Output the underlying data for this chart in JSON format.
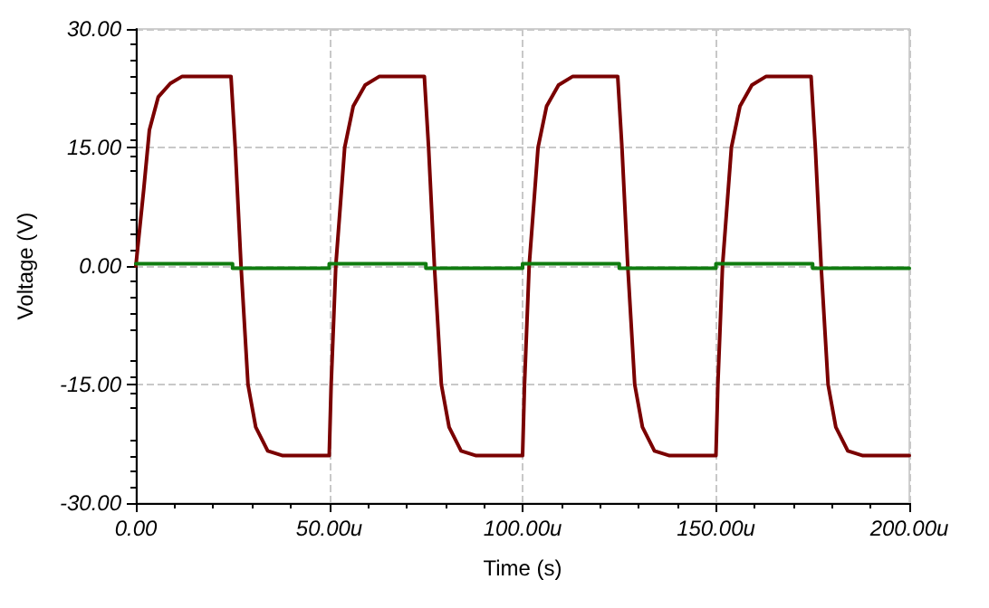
{
  "chart_data": {
    "type": "line",
    "xlabel": "Time (s)",
    "ylabel": "Voltage (V)",
    "xlim": [
      0,
      200
    ],
    "ylim": [
      -30,
      30
    ],
    "xticks": [
      {
        "value": 0,
        "label": "0.00"
      },
      {
        "value": 50,
        "label": "50.00u"
      },
      {
        "value": 100,
        "label": "100.00u"
      },
      {
        "value": 150,
        "label": "150.00u"
      },
      {
        "value": 200,
        "label": "200.00u"
      }
    ],
    "yticks": [
      {
        "value": -30,
        "label": "-30.00"
      },
      {
        "value": -15,
        "label": "-15.00"
      },
      {
        "value": 0,
        "label": "0.00"
      },
      {
        "value": 15,
        "label": "15.00"
      },
      {
        "value": 30,
        "label": "30.00"
      }
    ],
    "grid": true,
    "marker": "none",
    "line_style": "solid",
    "series": [
      {
        "color": "#7a0000",
        "x": [
          0,
          2,
          3.5,
          5.8,
          8.9,
          12,
          24.6,
          25.7,
          27.2,
          29,
          31,
          34.1,
          38,
          50,
          50.5,
          51.7,
          54,
          56.2,
          59.3,
          63,
          74.6,
          75.7,
          77.2,
          79,
          81,
          84.1,
          88,
          100,
          100.5,
          101.7,
          104,
          106.2,
          109.3,
          113,
          124.6,
          125.7,
          127.2,
          129,
          131,
          134.1,
          138,
          150,
          150.5,
          151.7,
          154,
          156.2,
          159.3,
          163,
          174.6,
          175.7,
          177.2,
          179,
          181,
          184.1,
          188,
          200
        ],
        "values": [
          0,
          9.5,
          17.2,
          21.4,
          23.1,
          24,
          24,
          15,
          0,
          -15,
          -20.4,
          -23.4,
          -24,
          -24,
          -15,
          0,
          15,
          20.2,
          22.9,
          24,
          24,
          15,
          0,
          -15,
          -20.4,
          -23.4,
          -24,
          -24,
          -15,
          0,
          15,
          20.2,
          22.9,
          24,
          24,
          15,
          0,
          -15,
          -20.4,
          -23.4,
          -24,
          -24,
          -15,
          0,
          15,
          20.2,
          22.9,
          24,
          24,
          15,
          0,
          -15,
          -20.4,
          -23.4,
          -24,
          -24
        ]
      },
      {
        "color": "#107c10",
        "x": [
          0,
          25,
          25,
          50,
          50,
          75,
          75,
          100,
          100,
          125,
          125,
          150,
          150,
          175,
          175,
          200
        ],
        "values": [
          0.3,
          0.3,
          -0.3,
          -0.3,
          0.3,
          0.3,
          -0.3,
          -0.3,
          0.3,
          0.3,
          -0.3,
          -0.3,
          0.3,
          0.3,
          -0.3,
          -0.3
        ]
      }
    ]
  }
}
